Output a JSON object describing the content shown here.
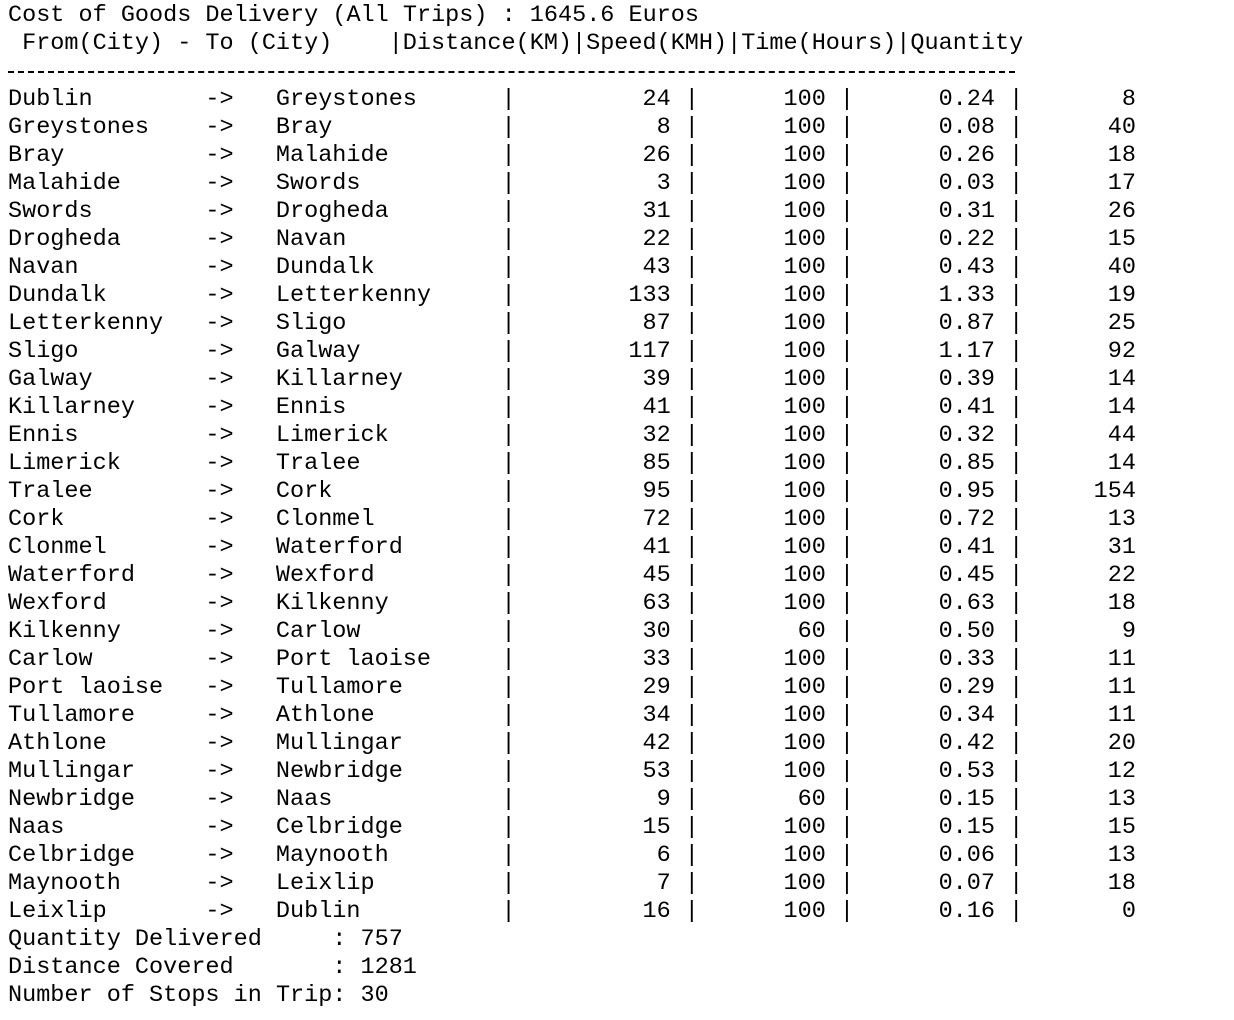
{
  "header": {
    "title": "Cost of Goods Delivery (All Trips) : 1645.6 Euros",
    "columns": [
      "From(City) - To (City)",
      "Distance(KM)",
      "Speed(KMH)",
      "Time(Hours)",
      "Quantity"
    ]
  },
  "table": {
    "rows": [
      [
        "Dublin",
        "Greystones",
        24,
        100,
        "0.24",
        8
      ],
      [
        "Greystones",
        "Bray",
        8,
        100,
        "0.08",
        40
      ],
      [
        "Bray",
        "Malahide",
        26,
        100,
        "0.26",
        18
      ],
      [
        "Malahide",
        "Swords",
        3,
        100,
        "0.03",
        17
      ],
      [
        "Swords",
        "Drogheda",
        31,
        100,
        "0.31",
        26
      ],
      [
        "Drogheda",
        "Navan",
        22,
        100,
        "0.22",
        15
      ],
      [
        "Navan",
        "Dundalk",
        43,
        100,
        "0.43",
        40
      ],
      [
        "Dundalk",
        "Letterkenny",
        133,
        100,
        "1.33",
        19
      ],
      [
        "Letterkenny",
        "Sligo",
        87,
        100,
        "0.87",
        25
      ],
      [
        "Sligo",
        "Galway",
        117,
        100,
        "1.17",
        92
      ],
      [
        "Galway",
        "Killarney",
        39,
        100,
        "0.39",
        14
      ],
      [
        "Killarney",
        "Ennis",
        41,
        100,
        "0.41",
        14
      ],
      [
        "Ennis",
        "Limerick",
        32,
        100,
        "0.32",
        44
      ],
      [
        "Limerick",
        "Tralee",
        85,
        100,
        "0.85",
        14
      ],
      [
        "Tralee",
        "Cork",
        95,
        100,
        "0.95",
        154
      ],
      [
        "Cork",
        "Clonmel",
        72,
        100,
        "0.72",
        13
      ],
      [
        "Clonmel",
        "Waterford",
        41,
        100,
        "0.41",
        31
      ],
      [
        "Waterford",
        "Wexford",
        45,
        100,
        "0.45",
        22
      ],
      [
        "Wexford",
        "Kilkenny",
        63,
        100,
        "0.63",
        18
      ],
      [
        "Kilkenny",
        "Carlow",
        30,
        60,
        "0.50",
        9
      ],
      [
        "Carlow",
        "Port laoise",
        33,
        100,
        "0.33",
        11
      ],
      [
        "Port laoise",
        "Tullamore",
        29,
        100,
        "0.29",
        11
      ],
      [
        "Tullamore",
        "Athlone",
        34,
        100,
        "0.34",
        11
      ],
      [
        "Athlone",
        "Mullingar",
        42,
        100,
        "0.42",
        20
      ],
      [
        "Mullingar",
        "Newbridge",
        53,
        100,
        "0.53",
        12
      ],
      [
        "Newbridge",
        "Naas",
        9,
        60,
        "0.15",
        13
      ],
      [
        "Naas",
        "Celbridge",
        15,
        100,
        "0.15",
        15
      ],
      [
        "Celbridge",
        "Maynooth",
        6,
        100,
        "0.06",
        13
      ],
      [
        "Maynooth",
        "Leixlip",
        7,
        100,
        "0.07",
        18
      ],
      [
        "Leixlip",
        "Dublin",
        16,
        100,
        "0.16",
        0
      ]
    ]
  },
  "summary": [
    {
      "label": "Quantity Delivered",
      "value": 757
    },
    {
      "label": "Distance Covered",
      "value": 1281
    },
    {
      "label": "Number of Stops in Trip",
      "value": 30
    }
  ]
}
